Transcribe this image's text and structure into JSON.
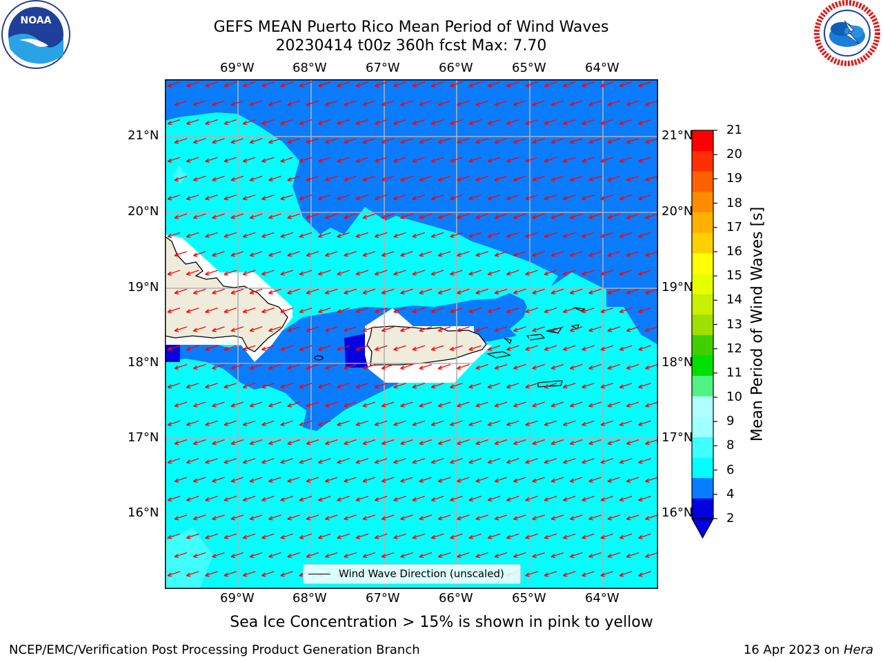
{
  "header": {
    "title_line1": "GEFS MEAN Puerto Rico Mean Period of Wind Waves",
    "title_line2": "20230414 t00z 360h fcst   Max: 7.70"
  },
  "logos": {
    "noaa": "NOAA",
    "nws": "NATIONAL WEATHER SERVICE",
    "noaa_ring": "NATIONAL OCEANIC AND ATMOSPHERIC ADMINISTRATION · U.S. DEPARTMENT OF COMMERCE"
  },
  "map": {
    "lon_labels": [
      "69°W",
      "68°W",
      "67°W",
      "66°W",
      "65°W",
      "64°W"
    ],
    "lat_labels": [
      "21°N",
      "20°N",
      "19°N",
      "18°N",
      "17°N",
      "16°N"
    ],
    "legend_label": "Wind Wave Direction (unscaled)",
    "arrow_color": "#ff0000",
    "land_color": "#efecdc"
  },
  "colorbar": {
    "label": "Mean Period of Wind Waves [s]",
    "ticks": [
      "21",
      "20",
      "19",
      "18",
      "17",
      "16",
      "15",
      "14",
      "13",
      "12",
      "11",
      "10",
      "9",
      "8",
      "6",
      "4",
      "2"
    ],
    "colors": [
      "#0000e0",
      "#0a7cff",
      "#00ffff",
      "#40ffff",
      "#a0ffff",
      "#b0ffff",
      "#4ff283",
      "#00e000",
      "#40d000",
      "#a0e000",
      "#c8f000",
      "#e8ff00",
      "#ffff00",
      "#ffd000",
      "#ffb000",
      "#ff8c00",
      "#ff6000",
      "#ff3000",
      "#ff0000"
    ]
  },
  "footer": {
    "note": "Sea Ice Concentration > 15% is shown in pink to yellow",
    "left": "NCEP/EMC/Verification Post Processing Product Generation Branch",
    "date": "16 Apr 2023 on",
    "host": "Hera"
  }
}
